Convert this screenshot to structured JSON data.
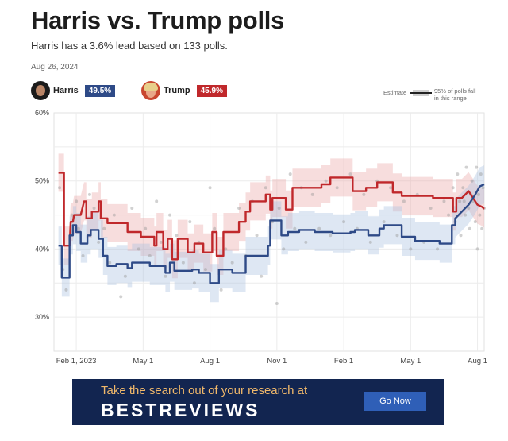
{
  "header": {
    "title": "Harris vs. Trump polls",
    "subtitle": "Harris has a 3.6% lead based on 133 polls.",
    "date": "Aug 26, 2024"
  },
  "candidates": [
    {
      "name": "Harris",
      "value": "49.5%",
      "color": "#2e4a87"
    },
    {
      "name": "Trump",
      "value": "45.9%",
      "color": "#c0282b"
    }
  ],
  "legend": {
    "estimate_label": "Estimate",
    "band_label_line1": "95% of polls fall",
    "band_label_line2": "in this range"
  },
  "ad": {
    "headline": "Take the search out of your research at",
    "brand": "BESTREVIEWS",
    "button": "Go Now"
  },
  "chart_data": {
    "type": "line",
    "title": "Harris vs. Trump polls",
    "ylabel": "",
    "xlabel": "",
    "ylim": [
      25,
      60
    ],
    "xlim": [
      0,
      19.3
    ],
    "x_unit": "months since Jan 2023",
    "grid": true,
    "y_ticks": [
      {
        "v": 60,
        "label": "60%"
      },
      {
        "v": 50,
        "label": "50%"
      },
      {
        "v": 40,
        "label": "40%"
      },
      {
        "v": 30,
        "label": "30%"
      }
    ],
    "x_ticks": [
      {
        "v": 1,
        "label": "Feb 1, 2023"
      },
      {
        "v": 4,
        "label": "May 1"
      },
      {
        "v": 7,
        "label": "Aug 1"
      },
      {
        "v": 10,
        "label": "Nov 1"
      },
      {
        "v": 13,
        "label": "Feb 1"
      },
      {
        "v": 16,
        "label": "May 1"
      },
      {
        "v": 19,
        "label": "Aug 1"
      }
    ],
    "series": [
      {
        "name": "Trump",
        "color": "#c0282b",
        "band_color": "#e9a5a6",
        "points": [
          [
            0.2,
            51.2
          ],
          [
            0.45,
            51.2
          ],
          [
            0.45,
            40.5
          ],
          [
            0.7,
            40.5
          ],
          [
            0.75,
            44
          ],
          [
            0.85,
            44
          ],
          [
            0.9,
            45
          ],
          [
            1.2,
            45
          ],
          [
            1.35,
            47
          ],
          [
            1.45,
            47
          ],
          [
            1.45,
            44.5
          ],
          [
            1.7,
            44.5
          ],
          [
            1.7,
            45.5
          ],
          [
            2.0,
            45.5
          ],
          [
            2.0,
            47
          ],
          [
            2.1,
            47
          ],
          [
            2.1,
            44.5
          ],
          [
            2.4,
            44.5
          ],
          [
            2.4,
            43.8
          ],
          [
            3.3,
            43.8
          ],
          [
            3.3,
            42.5
          ],
          [
            3.9,
            42.5
          ],
          [
            3.9,
            41.8
          ],
          [
            4.5,
            41.8
          ],
          [
            4.5,
            40.5
          ],
          [
            4.6,
            40.5
          ],
          [
            4.6,
            42.5
          ],
          [
            4.9,
            42.5
          ],
          [
            4.9,
            40
          ],
          [
            5.1,
            40
          ],
          [
            5.1,
            41.5
          ],
          [
            5.3,
            41.5
          ],
          [
            5.3,
            38.5
          ],
          [
            5.55,
            38.5
          ],
          [
            5.55,
            41.5
          ],
          [
            6.0,
            41.5
          ],
          [
            6.0,
            39.5
          ],
          [
            6.3,
            39.5
          ],
          [
            6.3,
            40.8
          ],
          [
            6.7,
            40.8
          ],
          [
            6.7,
            39.5
          ],
          [
            7.1,
            39.5
          ],
          [
            7.1,
            42.5
          ],
          [
            7.3,
            42.5
          ],
          [
            7.3,
            39
          ],
          [
            7.6,
            39
          ],
          [
            7.6,
            42.5
          ],
          [
            8.3,
            42.5
          ],
          [
            8.3,
            44
          ],
          [
            8.6,
            44
          ],
          [
            8.6,
            45.5
          ],
          [
            8.8,
            45.5
          ],
          [
            8.8,
            47
          ],
          [
            9.5,
            47
          ],
          [
            9.5,
            48
          ],
          [
            9.7,
            48
          ],
          [
            9.7,
            45.8
          ],
          [
            9.8,
            45.8
          ],
          [
            9.8,
            47.5
          ],
          [
            10.4,
            47.5
          ],
          [
            10.4,
            45.8
          ],
          [
            10.7,
            45.8
          ],
          [
            10.7,
            49
          ],
          [
            12.0,
            49
          ],
          [
            12.0,
            49.5
          ],
          [
            12.4,
            49.5
          ],
          [
            12.4,
            50.5
          ],
          [
            13.4,
            50.5
          ],
          [
            13.4,
            48.5
          ],
          [
            14.0,
            48.5
          ],
          [
            14.0,
            49
          ],
          [
            14.5,
            49
          ],
          [
            14.5,
            49.8
          ],
          [
            15.2,
            49.8
          ],
          [
            15.2,
            48.3
          ],
          [
            15.6,
            48.3
          ],
          [
            15.6,
            47.8
          ],
          [
            17.0,
            47.8
          ],
          [
            17.0,
            47.5
          ],
          [
            17.9,
            47.5
          ],
          [
            17.9,
            45.5
          ],
          [
            18.05,
            45.5
          ],
          [
            18.05,
            47.5
          ],
          [
            18.3,
            47.5
          ],
          [
            18.6,
            48.5
          ],
          [
            18.8,
            47.5
          ],
          [
            19.0,
            46.5
          ],
          [
            19.2,
            46.2
          ],
          [
            19.3,
            45.9
          ]
        ]
      },
      {
        "name": "Harris",
        "color": "#2e4a87",
        "band_color": "#a7c0df",
        "points": [
          [
            0.2,
            40.5
          ],
          [
            0.35,
            40.5
          ],
          [
            0.35,
            35.8
          ],
          [
            0.7,
            35.8
          ],
          [
            0.7,
            42
          ],
          [
            0.85,
            42
          ],
          [
            0.85,
            43.5
          ],
          [
            1.0,
            43.5
          ],
          [
            1.0,
            42.5
          ],
          [
            1.2,
            42.5
          ],
          [
            1.2,
            40.8
          ],
          [
            1.5,
            40.8
          ],
          [
            1.5,
            42
          ],
          [
            1.65,
            42
          ],
          [
            1.65,
            42.8
          ],
          [
            2.0,
            42.8
          ],
          [
            2.0,
            41.5
          ],
          [
            2.2,
            41.5
          ],
          [
            2.2,
            39
          ],
          [
            2.4,
            39
          ],
          [
            2.4,
            37.5
          ],
          [
            2.8,
            37.5
          ],
          [
            2.8,
            37.8
          ],
          [
            3.3,
            37.8
          ],
          [
            3.3,
            37.2
          ],
          [
            3.5,
            37.2
          ],
          [
            3.5,
            38
          ],
          [
            4.3,
            38
          ],
          [
            4.3,
            37.5
          ],
          [
            5.0,
            37.5
          ],
          [
            5.0,
            36.5
          ],
          [
            5.2,
            36.5
          ],
          [
            5.2,
            38
          ],
          [
            5.4,
            38
          ],
          [
            5.4,
            36.8
          ],
          [
            6.2,
            36.8
          ],
          [
            6.2,
            37
          ],
          [
            6.5,
            37
          ],
          [
            6.5,
            36.5
          ],
          [
            7.0,
            36.5
          ],
          [
            7.0,
            35
          ],
          [
            7.4,
            35
          ],
          [
            7.4,
            37
          ],
          [
            8.0,
            37
          ],
          [
            8.0,
            36.5
          ],
          [
            8.6,
            36.5
          ],
          [
            8.6,
            39
          ],
          [
            9.6,
            39
          ],
          [
            9.6,
            40.5
          ],
          [
            9.7,
            40.5
          ],
          [
            9.7,
            44.2
          ],
          [
            10.2,
            44.2
          ],
          [
            10.2,
            42
          ],
          [
            10.5,
            42
          ],
          [
            10.5,
            42.5
          ],
          [
            11.0,
            42.5
          ],
          [
            11.0,
            42.8
          ],
          [
            11.7,
            42.8
          ],
          [
            11.7,
            42.5
          ],
          [
            12.5,
            42.5
          ],
          [
            12.5,
            42.3
          ],
          [
            13.3,
            42.3
          ],
          [
            13.3,
            42.5
          ],
          [
            13.5,
            42.5
          ],
          [
            13.5,
            42.8
          ],
          [
            14.1,
            42.8
          ],
          [
            14.1,
            42
          ],
          [
            14.6,
            42
          ],
          [
            14.6,
            43
          ],
          [
            14.8,
            43
          ],
          [
            14.8,
            43.5
          ],
          [
            15.6,
            43.5
          ],
          [
            15.6,
            41.8
          ],
          [
            16.2,
            41.8
          ],
          [
            16.2,
            41.2
          ],
          [
            17.3,
            41.2
          ],
          [
            17.3,
            40.8
          ],
          [
            17.85,
            40.8
          ],
          [
            17.85,
            43.5
          ],
          [
            18.0,
            43.5
          ],
          [
            18.0,
            44.5
          ],
          [
            18.3,
            45.5
          ],
          [
            18.6,
            46.5
          ],
          [
            18.9,
            48
          ],
          [
            19.1,
            49.2
          ],
          [
            19.3,
            49.5
          ]
        ]
      }
    ],
    "poll_points": [
      [
        0.25,
        49
      ],
      [
        0.4,
        37
      ],
      [
        0.55,
        34
      ],
      [
        0.8,
        45
      ],
      [
        1.0,
        47
      ],
      [
        1.1,
        43
      ],
      [
        1.3,
        39
      ],
      [
        1.6,
        48
      ],
      [
        1.8,
        46
      ],
      [
        2.0,
        41
      ],
      [
        2.25,
        43
      ],
      [
        2.5,
        38
      ],
      [
        2.7,
        45
      ],
      [
        3.0,
        33
      ],
      [
        3.2,
        36
      ],
      [
        3.5,
        46
      ],
      [
        3.8,
        40
      ],
      [
        4.1,
        43
      ],
      [
        4.3,
        39
      ],
      [
        4.6,
        47
      ],
      [
        4.8,
        41
      ],
      [
        5.0,
        36
      ],
      [
        5.2,
        45
      ],
      [
        5.5,
        42
      ],
      [
        5.8,
        38
      ],
      [
        6.1,
        44
      ],
      [
        6.3,
        35
      ],
      [
        6.5,
        41
      ],
      [
        6.8,
        37
      ],
      [
        7.0,
        49
      ],
      [
        7.2,
        43
      ],
      [
        7.5,
        34
      ],
      [
        7.7,
        40
      ],
      [
        8.0,
        38
      ],
      [
        8.3,
        46
      ],
      [
        8.6,
        39
      ],
      [
        8.9,
        47
      ],
      [
        9.1,
        42
      ],
      [
        9.3,
        36
      ],
      [
        9.5,
        49
      ],
      [
        9.8,
        44
      ],
      [
        10.0,
        32
      ],
      [
        10.1,
        46
      ],
      [
        10.3,
        40
      ],
      [
        10.6,
        51
      ],
      [
        10.8,
        43
      ],
      [
        11.1,
        49
      ],
      [
        11.3,
        41
      ],
      [
        11.6,
        48
      ],
      [
        11.9,
        43
      ],
      [
        12.2,
        50
      ],
      [
        12.4,
        42
      ],
      [
        12.7,
        49
      ],
      [
        13.0,
        44
      ],
      [
        13.3,
        51
      ],
      [
        13.6,
        43
      ],
      [
        13.9,
        48
      ],
      [
        14.2,
        41
      ],
      [
        14.5,
        50
      ],
      [
        14.8,
        44
      ],
      [
        15.1,
        49
      ],
      [
        15.4,
        42
      ],
      [
        15.7,
        47
      ],
      [
        16.0,
        40
      ],
      [
        16.3,
        48
      ],
      [
        16.6,
        41
      ],
      [
        16.9,
        46
      ],
      [
        17.2,
        40
      ],
      [
        17.5,
        47
      ],
      [
        17.7,
        45
      ],
      [
        17.9,
        49
      ],
      [
        18.0,
        44
      ],
      [
        18.1,
        51
      ],
      [
        18.2,
        47
      ],
      [
        18.25,
        42
      ],
      [
        18.35,
        49
      ],
      [
        18.45,
        45
      ],
      [
        18.5,
        52
      ],
      [
        18.6,
        46
      ],
      [
        18.65,
        43
      ],
      [
        18.75,
        50
      ],
      [
        18.8,
        47
      ],
      [
        18.9,
        44
      ],
      [
        18.95,
        52
      ],
      [
        19.05,
        48
      ],
      [
        19.1,
        45
      ],
      [
        19.15,
        51
      ],
      [
        19.2,
        43
      ],
      [
        19.25,
        49
      ],
      [
        19.3,
        46
      ],
      [
        19.0,
        40
      ],
      [
        18.7,
        48
      ],
      [
        18.4,
        47
      ]
    ]
  }
}
